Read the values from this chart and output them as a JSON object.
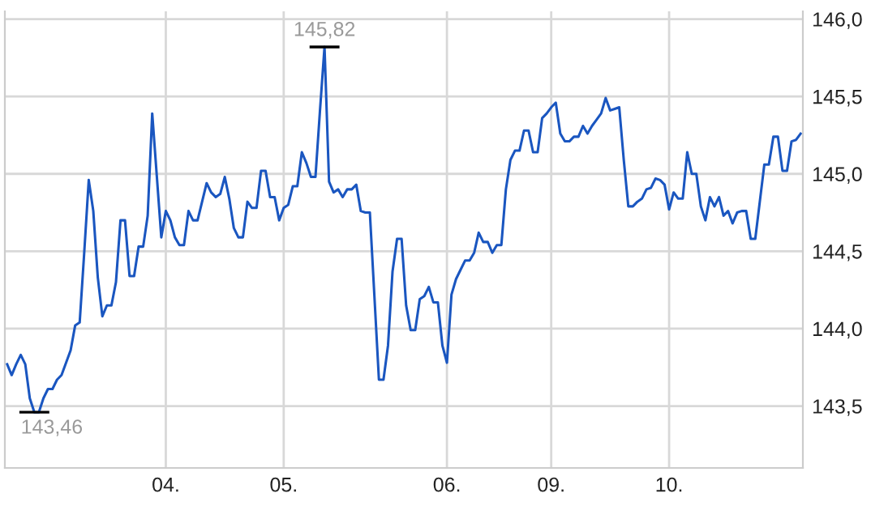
{
  "chart_data": {
    "type": "line",
    "categories": [
      null,
      null,
      null,
      null,
      null,
      null,
      null,
      null,
      null,
      null,
      null,
      null,
      null,
      null,
      null,
      null,
      null,
      null,
      null,
      null,
      null,
      null,
      null,
      null,
      null,
      null,
      null,
      null,
      null,
      null,
      null,
      null,
      null,
      null,
      null,
      "04.",
      null,
      null,
      null,
      null,
      null,
      null,
      null,
      null,
      null,
      null,
      null,
      null,
      null,
      null,
      null,
      null,
      null,
      null,
      null,
      null,
      null,
      null,
      null,
      null,
      null,
      "05.",
      null,
      null,
      null,
      null,
      null,
      null,
      null,
      null,
      null,
      null,
      null,
      null,
      null,
      null,
      null,
      null,
      null,
      null,
      null,
      null,
      null,
      null,
      null,
      null,
      null,
      null,
      null,
      null,
      null,
      null,
      null,
      null,
      null,
      null,
      null,
      "06.",
      null,
      null,
      null,
      null,
      null,
      null,
      null,
      null,
      null,
      null,
      null,
      null,
      null,
      null,
      null,
      null,
      null,
      null,
      null,
      null,
      null,
      null,
      "09.",
      null,
      null,
      null,
      null,
      null,
      null,
      null,
      null,
      null,
      null,
      null,
      null,
      null,
      null,
      null,
      null,
      null,
      null,
      null,
      null,
      null,
      null,
      null,
      null,
      null,
      "10.",
      null,
      null,
      null,
      null,
      null,
      null,
      null,
      null,
      null,
      null,
      null,
      null,
      null,
      null,
      null,
      null,
      null,
      null,
      null,
      null,
      null,
      null,
      null,
      null,
      null,
      null,
      null,
      null,
      null
    ],
    "ylim": [
      143.1,
      146.05
    ],
    "yticks": [
      {
        "value": 143.5,
        "label": "143,5"
      },
      {
        "value": 144.0,
        "label": "144,0"
      },
      {
        "value": 144.5,
        "label": "144,5"
      },
      {
        "value": 145.0,
        "label": "145,0"
      },
      {
        "value": 145.5,
        "label": "145,5"
      },
      {
        "value": 146.0,
        "label": "146,0"
      }
    ],
    "grid": true,
    "marker": "none",
    "line_style": "solid",
    "series": [
      {
        "color": "#1a56c0",
        "values": [
          143.77,
          143.7,
          143.77,
          143.83,
          143.77,
          143.55,
          143.46,
          143.46,
          143.55,
          143.61,
          143.61,
          143.67,
          143.7,
          143.78,
          143.86,
          144.02,
          144.04,
          144.49,
          144.96,
          144.76,
          144.33,
          144.08,
          144.15,
          144.15,
          144.3,
          144.7,
          144.7,
          144.34,
          144.34,
          144.53,
          144.53,
          144.73,
          145.39,
          144.99,
          144.59,
          144.76,
          144.7,
          144.59,
          144.54,
          144.54,
          144.76,
          144.7,
          144.7,
          144.82,
          144.94,
          144.88,
          144.85,
          144.87,
          144.98,
          144.84,
          144.65,
          144.59,
          144.59,
          144.82,
          144.78,
          144.78,
          145.02,
          145.02,
          144.85,
          144.85,
          144.7,
          144.78,
          144.8,
          144.92,
          144.92,
          145.14,
          145.07,
          144.98,
          144.98,
          145.41,
          145.82,
          144.95,
          144.88,
          144.9,
          144.85,
          144.9,
          144.9,
          144.93,
          144.76,
          144.75,
          144.75,
          144.21,
          143.67,
          143.67,
          143.89,
          144.37,
          144.58,
          144.58,
          144.15,
          143.99,
          143.99,
          144.19,
          144.21,
          144.27,
          144.17,
          144.17,
          143.89,
          143.78,
          144.22,
          144.32,
          144.38,
          144.44,
          144.44,
          144.49,
          144.62,
          144.56,
          144.56,
          144.49,
          144.54,
          144.54,
          144.9,
          145.09,
          145.15,
          145.15,
          145.28,
          145.28,
          145.14,
          145.14,
          145.36,
          145.39,
          145.43,
          145.46,
          145.26,
          145.21,
          145.21,
          145.24,
          145.24,
          145.31,
          145.26,
          145.31,
          145.35,
          145.39,
          145.49,
          145.41,
          145.42,
          145.43,
          145.09,
          144.79,
          144.79,
          144.82,
          144.84,
          144.9,
          144.91,
          144.97,
          144.96,
          144.93,
          144.77,
          144.88,
          144.84,
          144.84,
          145.14,
          145.0,
          145.0,
          144.79,
          144.7,
          144.85,
          144.79,
          144.85,
          144.73,
          144.76,
          144.68,
          144.75,
          144.76,
          144.76,
          144.58,
          144.58,
          144.82,
          145.06,
          145.06,
          145.24,
          145.24,
          145.02,
          145.02,
          145.21,
          145.22,
          145.26
        ]
      }
    ],
    "annotations": [
      {
        "text": "145,82",
        "y": 145.82
      },
      "143,46"
    ]
  }
}
